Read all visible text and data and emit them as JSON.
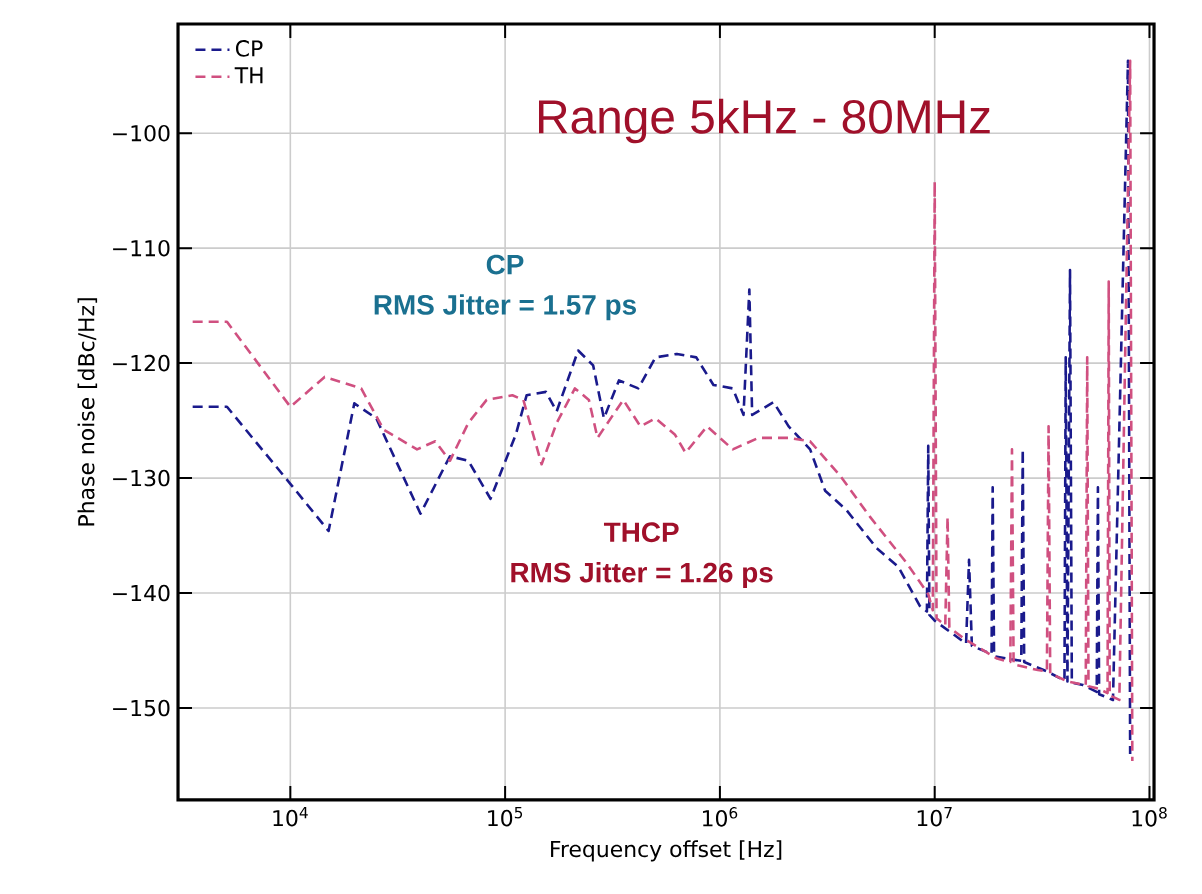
{
  "chart_data": {
    "type": "line",
    "xlabel": "Frequency offset [Hz]",
    "ylabel": "Phase noise [dBc/Hz]",
    "log": "x",
    "xlim": [
      3000,
      105000000
    ],
    "ylim": [
      -158,
      -90.5
    ],
    "xticks": [
      {
        "value": 10000,
        "label": "10$^{4}$"
      },
      {
        "value": 100000,
        "label": "10$^{5}$"
      },
      {
        "value": 1000000,
        "label": "10$^{6}$"
      },
      {
        "value": 10000000,
        "label": "10$^{7}$"
      },
      {
        "value": 100000000,
        "label": "10$^{8}$"
      }
    ],
    "yticks": [
      {
        "value": -100,
        "label": "−100"
      },
      {
        "value": -110,
        "label": "−110"
      },
      {
        "value": -120,
        "label": "−120"
      },
      {
        "value": -130,
        "label": "−130"
      },
      {
        "value": -140,
        "label": "−140"
      },
      {
        "value": -150,
        "label": "−150"
      }
    ],
    "grid": true,
    "legend": "top left",
    "line_style": "dashed",
    "marker": "none",
    "annotations": [
      "Range 5kHz - 80MHz",
      "CP",
      "RMS Jitter = 1.57 ps",
      "THCP",
      "RMS Jitter = 1.26 ps"
    ],
    "series": [
      {
        "name": "CP",
        "color": "#1a1a8c",
        "x": [
          3510,
          5070,
          10000,
          15070,
          19860,
          25120,
          40360,
          55340,
          67450,
          85510,
          112200,
          125900,
          154900,
          173800,
          218800,
          257000,
          288400,
          338800,
          416900,
          501200,
          631000,
          776200,
          933300,
          1148000,
          1288000,
          1371000,
          1413000,
          1778000,
          2089000,
          2630000,
          3090000,
          3890000,
          5370000,
          6761000,
          8511000,
          9200000,
          9333000,
          9450000,
          10000000,
          14000000,
          14450000,
          14900000,
          18400000,
          18620000,
          18900000,
          25300000,
          25700000,
          26100000,
          33110000,
          40200000,
          40740000,
          41500000,
          42660000,
          43500000,
          48980000,
          56800000,
          57540000,
          58300000,
          67610000,
          79430000,
          81280000
        ],
        "values": [
          -123.8,
          -123.8,
          -130.5,
          -134.6,
          -123.5,
          -124.8,
          -133.1,
          -128.1,
          -128.5,
          -131.8,
          -126.2,
          -122.8,
          -122.5,
          -124.2,
          -118.9,
          -120.2,
          -124.8,
          -121.5,
          -122.2,
          -119.5,
          -119.2,
          -119.5,
          -121.9,
          -122.2,
          -124.5,
          -113.6,
          -124.5,
          -123.4,
          -125.5,
          -127.5,
          -131.1,
          -132.8,
          -136.1,
          -137.7,
          -141.1,
          -141.6,
          -127.2,
          -141.9,
          -142.4,
          -144.4,
          -137.1,
          -144.6,
          -145.3,
          -130.8,
          -145.5,
          -145.9,
          -127.5,
          -146.0,
          -146.8,
          -147.6,
          -119.5,
          -147.7,
          -111.9,
          -147.8,
          -148.0,
          -148.6,
          -130.8,
          -148.8,
          -149.3,
          -93.7,
          -154.0
        ]
      },
      {
        "name": "TH",
        "color": "#d05080",
        "x": [
          3510,
          5070,
          10000,
          14450,
          21380,
          27230,
          38900,
          47320,
          55340,
          67450,
          82040,
          108100,
          121600,
          147900,
          173800,
          211300,
          245500,
          269200,
          354800,
          426600,
          501200,
          616600,
          691800,
          871000,
          1148000,
          1514000,
          2089000,
          2630000,
          3631000,
          5012000,
          7413000,
          9333000,
          9800000,
          10000000,
          10200000,
          11200000,
          11480000,
          11700000,
          13800000,
          19500000,
          22500000,
          22900000,
          23300000,
          30200000,
          33300000,
          33900000,
          34500000,
          41700000,
          50500000,
          51300000,
          52000000,
          57540000,
          63800000,
          64600000,
          65300000,
          72400000,
          81280000,
          83200000
        ],
        "values": [
          -116.4,
          -116.4,
          -123.8,
          -121.2,
          -122.2,
          -125.8,
          -127.5,
          -126.8,
          -128.5,
          -125.2,
          -123.2,
          -122.8,
          -123.2,
          -128.8,
          -125.2,
          -122.2,
          -123.2,
          -126.5,
          -123.2,
          -125.5,
          -124.8,
          -126.2,
          -127.8,
          -125.5,
          -127.5,
          -126.5,
          -126.5,
          -126.8,
          -129.8,
          -133.4,
          -137.4,
          -140.1,
          -141.5,
          -104.2,
          -142.2,
          -142.8,
          -133.4,
          -143.0,
          -144.0,
          -145.7,
          -146.0,
          -127.5,
          -146.2,
          -146.7,
          -146.8,
          -125.5,
          -147.0,
          -147.7,
          -148.0,
          -119.5,
          -148.1,
          -148.3,
          -148.7,
          -112.9,
          -148.9,
          -149.3,
          -93.7,
          -154.6
        ]
      }
    ]
  }
}
